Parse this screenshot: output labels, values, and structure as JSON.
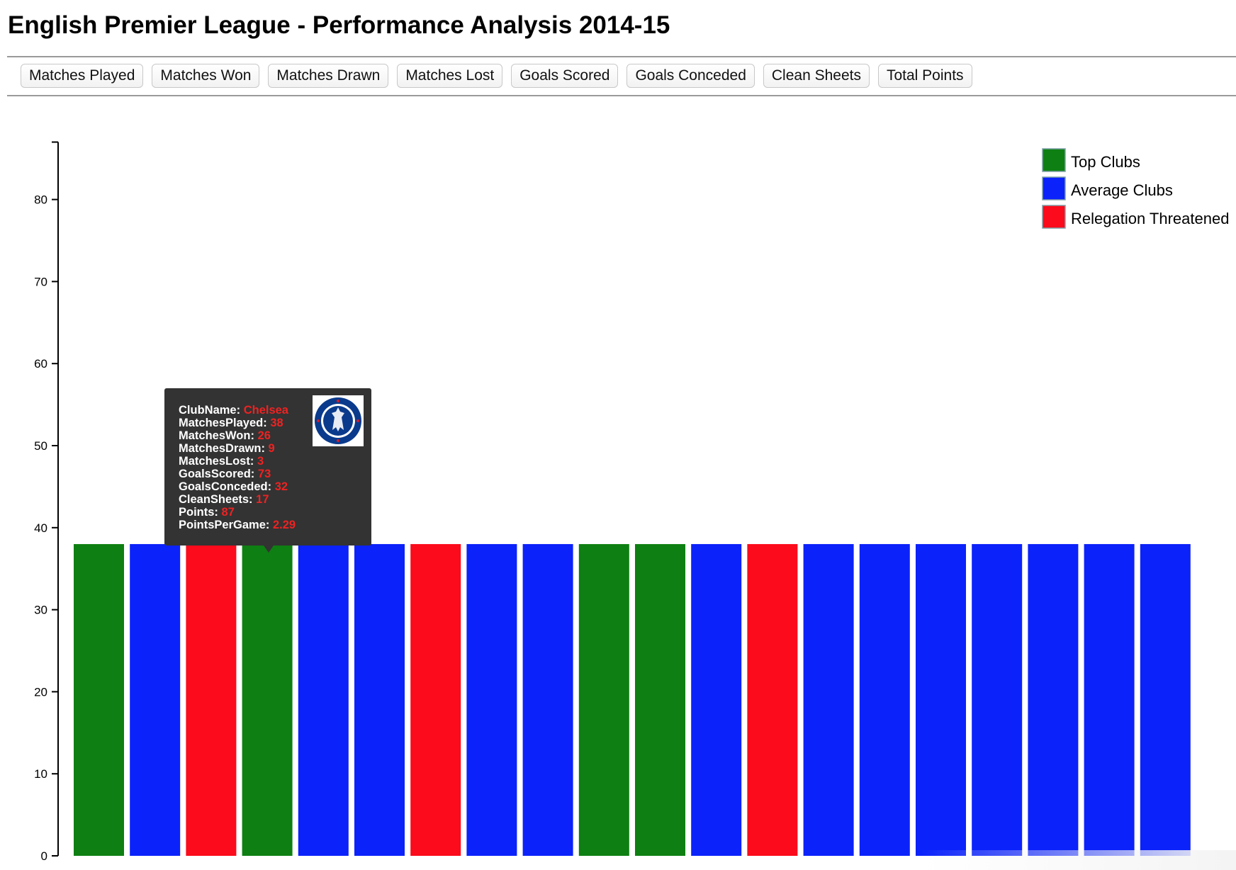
{
  "page": {
    "title": "English Premier League - Performance Analysis 2014-15"
  },
  "toolbar": {
    "buttons": [
      {
        "label": "Matches Played"
      },
      {
        "label": "Matches Won"
      },
      {
        "label": "Matches Drawn"
      },
      {
        "label": "Matches Lost"
      },
      {
        "label": "Goals Scored"
      },
      {
        "label": "Goals Conceded"
      },
      {
        "label": "Clean Sheets"
      },
      {
        "label": "Total Points"
      }
    ]
  },
  "chart_data": {
    "type": "bar",
    "y_ticks": [
      0,
      10,
      20,
      30,
      40,
      50,
      60,
      70,
      80
    ],
    "ylim": [
      0,
      87
    ],
    "values": [
      38,
      38,
      38,
      38,
      38,
      38,
      38,
      38,
      38,
      38,
      38,
      38,
      38,
      38,
      38,
      38,
      38,
      38,
      38,
      38
    ],
    "groups": [
      "top",
      "average",
      "relegation",
      "top",
      "average",
      "average",
      "relegation",
      "average",
      "average",
      "top",
      "top",
      "average",
      "relegation",
      "average",
      "average",
      "average",
      "average",
      "average",
      "average",
      "average"
    ],
    "colors": {
      "top": "#0e7f12",
      "average": "#0b22fa",
      "relegation": "#fb0b1b"
    },
    "legend": {
      "position": "top-right",
      "items": [
        {
          "key": "top",
          "label": "Top Clubs"
        },
        {
          "key": "average",
          "label": "Average Clubs"
        },
        {
          "key": "relegation",
          "label": "Relegation Threatened"
        }
      ]
    },
    "tooltip": {
      "bar_index": 3,
      "crest_icon": "chelsea-crest-icon",
      "fields": [
        {
          "key": "ClubName",
          "value": "Chelsea"
        },
        {
          "key": "MatchesPlayed",
          "value": "38"
        },
        {
          "key": "MatchesWon",
          "value": "26"
        },
        {
          "key": "MatchesDrawn",
          "value": "9"
        },
        {
          "key": "MatchesLost",
          "value": "3"
        },
        {
          "key": "GoalsScored",
          "value": "73"
        },
        {
          "key": "GoalsConceded",
          "value": "32"
        },
        {
          "key": "CleanSheets",
          "value": "17"
        },
        {
          "key": "Points",
          "value": "87"
        },
        {
          "key": "PointsPerGame",
          "value": "2.29"
        }
      ]
    }
  }
}
